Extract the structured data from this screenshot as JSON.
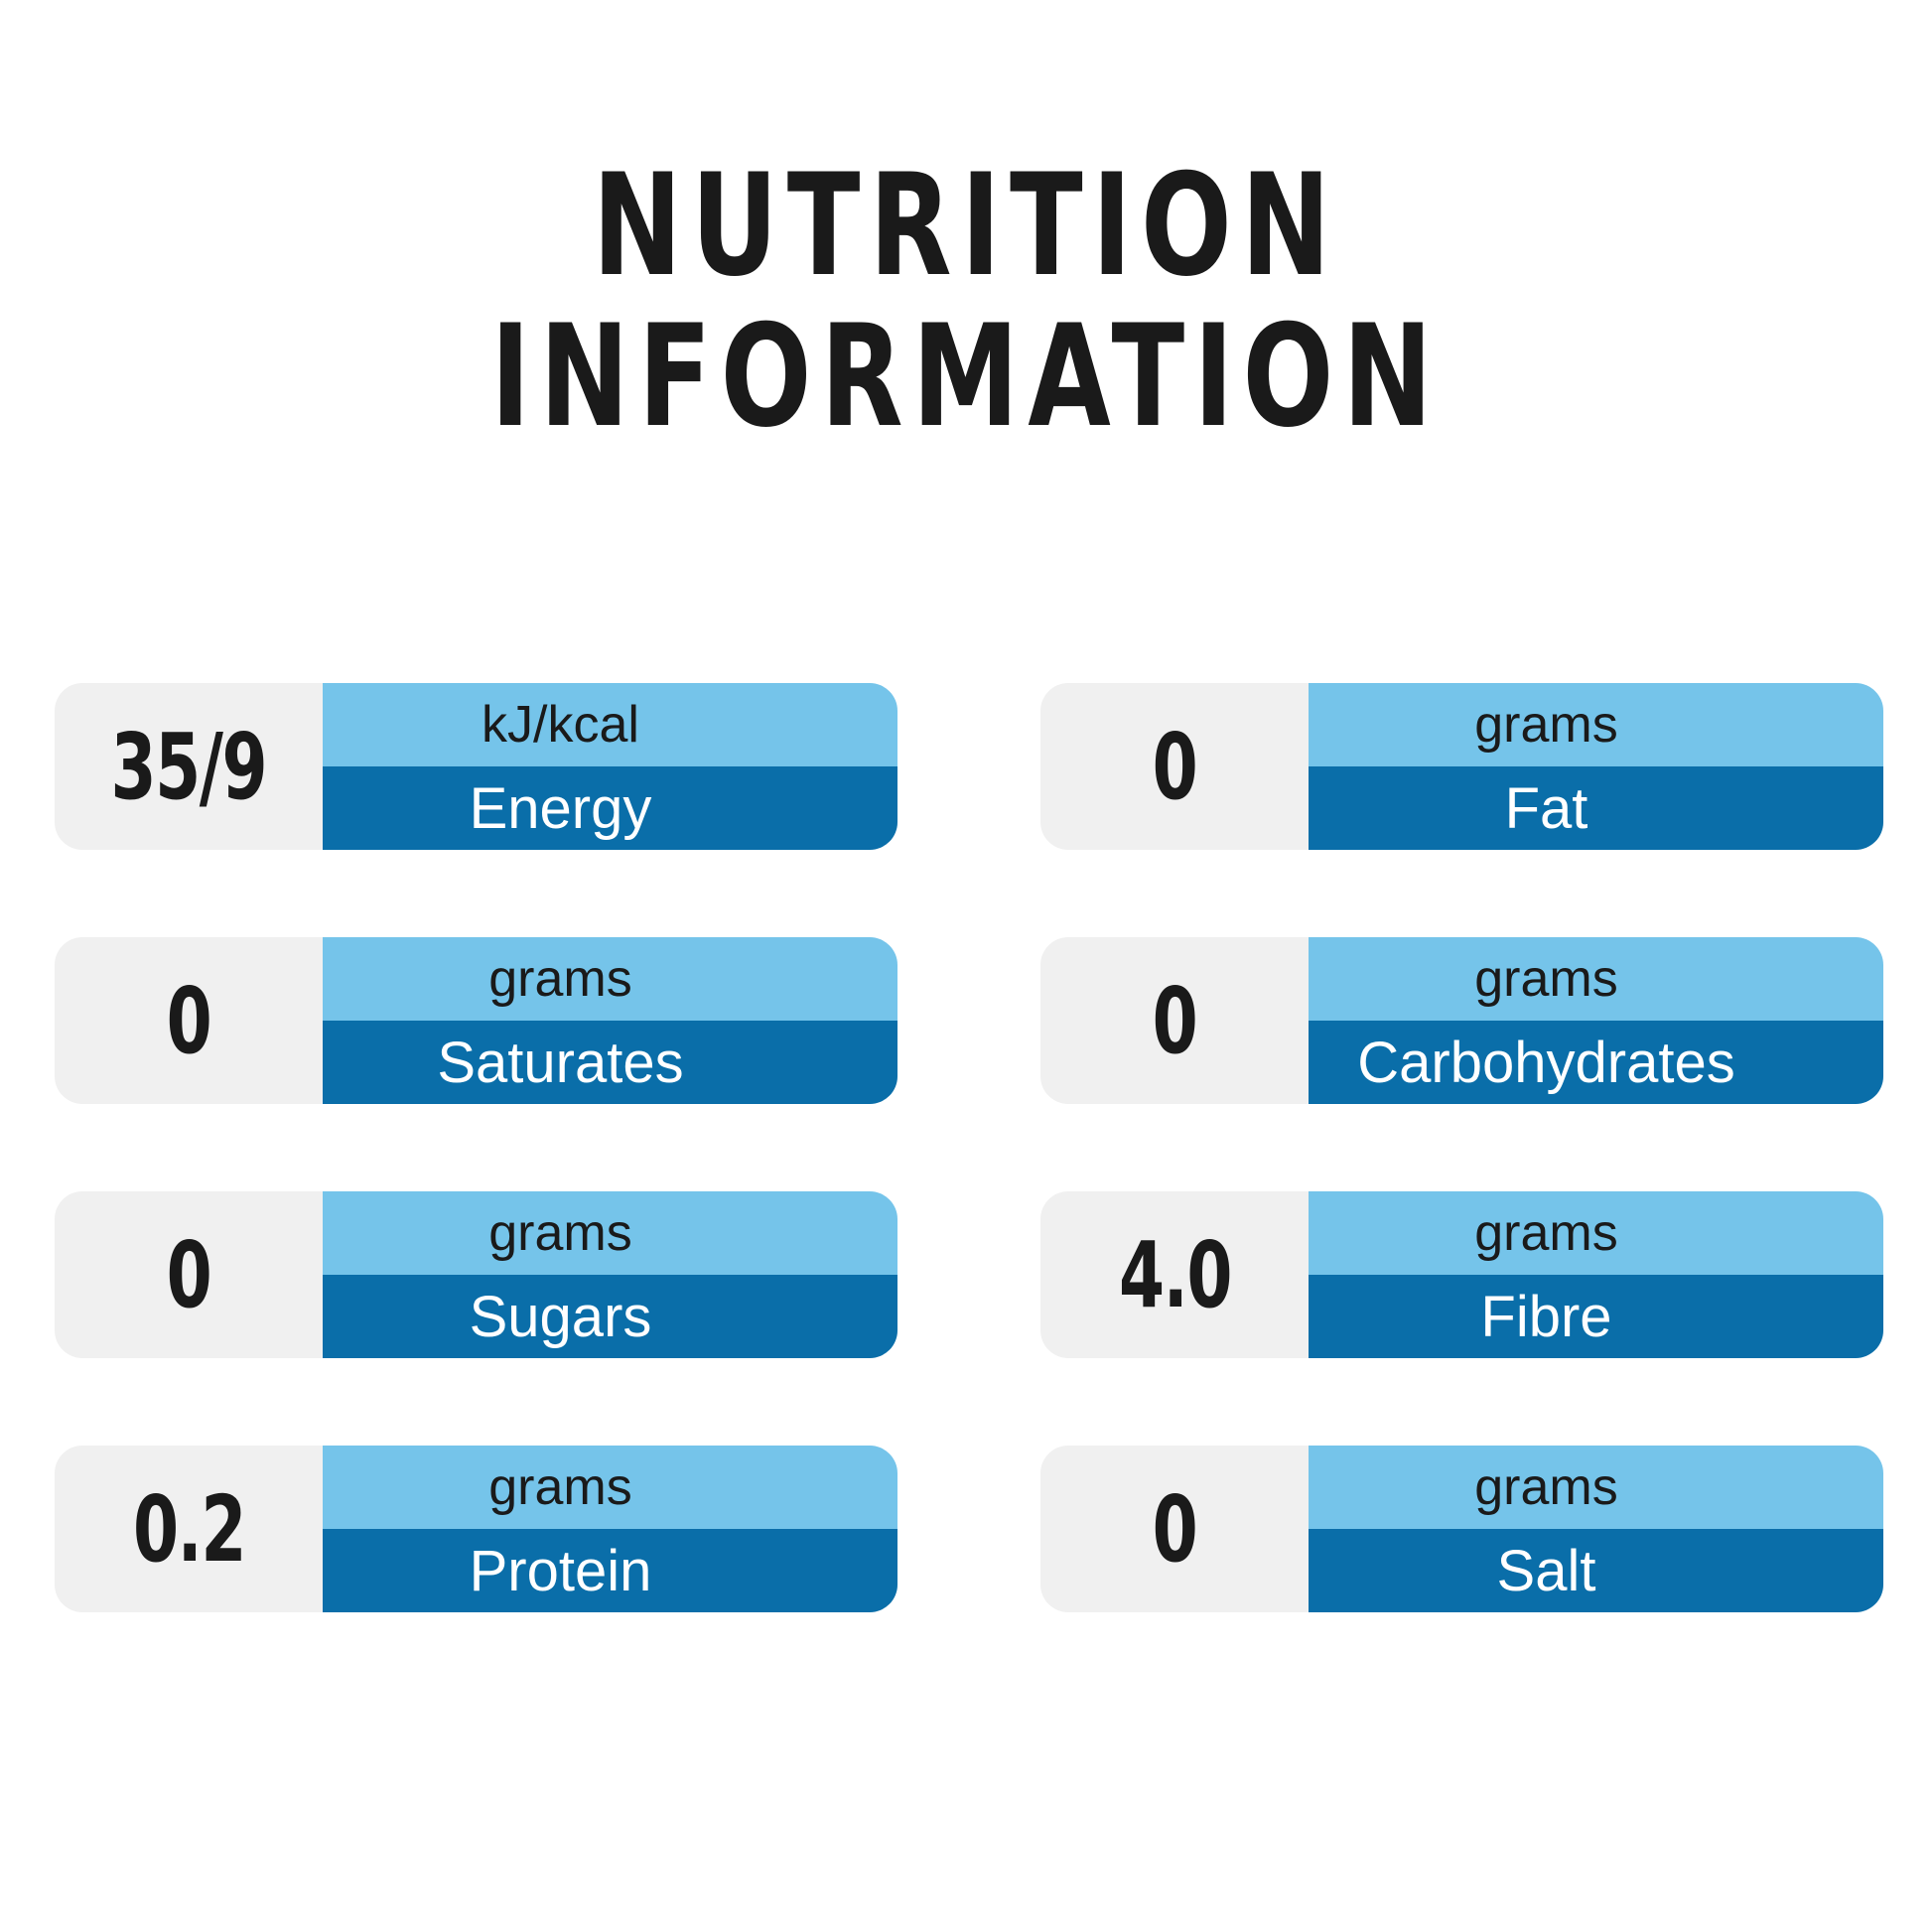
{
  "title": {
    "line1": "NUTRITION",
    "line2": "INFORMATION"
  },
  "colors": {
    "background": "#FFFFFF",
    "value_panel_gray": "#F0F0F0",
    "unit_band_blue": "#75C4EA",
    "label_band_blue": "#0A6EA9",
    "title_text": "#1A1A1A",
    "value_text": "#1A1A1A",
    "unit_text": "#1A1A1A",
    "label_text": "#FFFFFF"
  },
  "nutrients": {
    "left_column": [
      {
        "value": "35/9",
        "unit": "kJ/kcal",
        "label": "Energy"
      },
      {
        "value": "0",
        "unit": "grams",
        "label": "Saturates"
      },
      {
        "value": "0",
        "unit": "grams",
        "label": "Sugars"
      },
      {
        "value": "0.2",
        "unit": "grams",
        "label": "Protein"
      }
    ],
    "right_column": [
      {
        "value": "0",
        "unit": "grams",
        "label": "Fat"
      },
      {
        "value": "0",
        "unit": "grams",
        "label": "Carbohydrates"
      },
      {
        "value": "4.0",
        "unit": "grams",
        "label": "Fibre"
      },
      {
        "value": "0",
        "unit": "grams",
        "label": "Salt"
      }
    ]
  }
}
